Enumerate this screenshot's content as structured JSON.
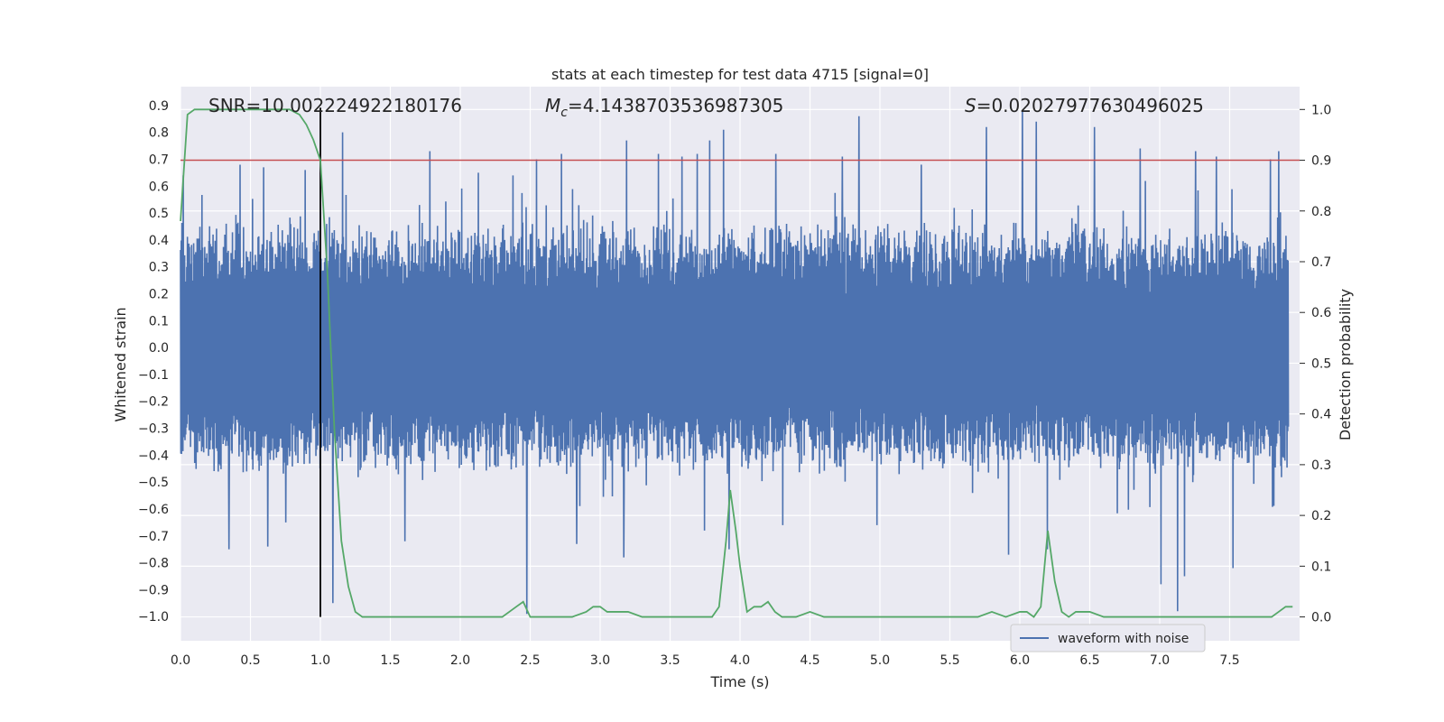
{
  "chart_data": {
    "type": "line",
    "title": "stats at each timestep for test data 4715 [signal=0]",
    "xlabel": "Time (s)",
    "ylabel": "Whitened strain",
    "y2label": "Detection probability",
    "xlim": [
      0.0,
      8.0
    ],
    "ylim": [
      -1.09,
      0.97
    ],
    "y2lim": [
      -0.047,
      1.045
    ],
    "xticks": [
      "0.0",
      "0.5",
      "1.0",
      "1.5",
      "2.0",
      "2.5",
      "3.0",
      "3.5",
      "4.0",
      "4.5",
      "5.0",
      "5.5",
      "6.0",
      "6.5",
      "7.0",
      "7.5"
    ],
    "yticks": [
      "0.9",
      "0.8",
      "0.7",
      "0.6",
      "0.5",
      "0.4",
      "0.3",
      "0.2",
      "0.1",
      "0.0",
      "−0.1",
      "−0.2",
      "−0.3",
      "−0.4",
      "−0.5",
      "−0.6",
      "−0.7",
      "−0.8",
      "−0.9",
      "−1.0"
    ],
    "y2ticks": [
      "1.0",
      "0.9",
      "0.8",
      "0.7",
      "0.6",
      "0.5",
      "0.4",
      "0.3",
      "0.2",
      "0.1",
      "0.0"
    ],
    "grid": true,
    "legend_position": "lower-right",
    "annotations": {
      "snr": "SNR=10.002224922180176",
      "mc_symbol": "M",
      "mc_sub": "c",
      "mc_value": "=4.1438703536987305",
      "s_symbol": "S",
      "s_value": "=0.02027977630496025"
    },
    "threshold": 0.9,
    "marker_time": 1.0,
    "colors": {
      "waveform": "#4c72b0",
      "probability": "#55a868",
      "threshold": "#c44e52",
      "marker": "#000000",
      "plot_bg": "#eaeaf2",
      "grid": "#ffffff"
    },
    "waveform": {
      "name": "waveform with noise",
      "core_amplitude": 0.42,
      "spikes": [
        {
          "t": 0.02,
          "v": 0.64
        },
        {
          "t": 0.35,
          "v": -0.75
        },
        {
          "t": 0.43,
          "v": 0.68
        },
        {
          "t": 0.6,
          "v": 0.67
        },
        {
          "t": 0.63,
          "v": -0.74
        },
        {
          "t": 0.76,
          "v": -0.65
        },
        {
          "t": 0.9,
          "v": 0.66
        },
        {
          "t": 1.1,
          "v": -0.95
        },
        {
          "t": 1.17,
          "v": 0.8
        },
        {
          "t": 1.62,
          "v": -0.72
        },
        {
          "t": 1.8,
          "v": 0.73
        },
        {
          "t": 2.15,
          "v": 0.65
        },
        {
          "t": 2.4,
          "v": 0.64
        },
        {
          "t": 2.5,
          "v": -0.99
        },
        {
          "t": 2.57,
          "v": 0.7
        },
        {
          "t": 2.75,
          "v": 0.72
        },
        {
          "t": 2.86,
          "v": -0.73
        },
        {
          "t": 3.2,
          "v": -0.78
        },
        {
          "t": 3.22,
          "v": 0.77
        },
        {
          "t": 3.45,
          "v": 0.72
        },
        {
          "t": 3.62,
          "v": 0.71
        },
        {
          "t": 3.73,
          "v": 0.72
        },
        {
          "t": 3.82,
          "v": 0.77
        },
        {
          "t": 3.92,
          "v": 0.81
        },
        {
          "t": 3.96,
          "v": -0.75
        },
        {
          "t": 4.3,
          "v": 0.72
        },
        {
          "t": 4.35,
          "v": -0.66
        },
        {
          "t": 4.78,
          "v": 0.71
        },
        {
          "t": 4.9,
          "v": 0.86
        },
        {
          "t": 5.03,
          "v": -0.66
        },
        {
          "t": 5.35,
          "v": 0.68
        },
        {
          "t": 5.82,
          "v": 0.82
        },
        {
          "t": 5.98,
          "v": -0.77
        },
        {
          "t": 6.08,
          "v": 0.88
        },
        {
          "t": 6.18,
          "v": 0.84
        },
        {
          "t": 6.26,
          "v": -0.75
        },
        {
          "t": 6.6,
          "v": 0.82
        },
        {
          "t": 6.93,
          "v": 0.74
        },
        {
          "t": 7.08,
          "v": -0.88
        },
        {
          "t": 7.2,
          "v": -0.98
        },
        {
          "t": 7.25,
          "v": -0.85
        },
        {
          "t": 7.33,
          "v": 0.73
        },
        {
          "t": 7.48,
          "v": 0.71
        },
        {
          "t": 7.6,
          "v": -0.82
        },
        {
          "t": 7.87,
          "v": 0.7
        },
        {
          "t": 7.93,
          "v": 0.73
        }
      ]
    },
    "probability": {
      "name": "Detection probability",
      "t": [
        0.0,
        0.05,
        0.1,
        0.2,
        0.3,
        0.4,
        0.5,
        0.6,
        0.7,
        0.78,
        0.85,
        0.9,
        0.95,
        1.0,
        1.05,
        1.1,
        1.15,
        1.2,
        1.25,
        1.3,
        1.4,
        1.5,
        1.6,
        1.7,
        1.8,
        1.9,
        2.0,
        2.1,
        2.2,
        2.3,
        2.4,
        2.45,
        2.5,
        2.55,
        2.6,
        2.7,
        2.8,
        2.9,
        2.95,
        3.0,
        3.05,
        3.1,
        3.2,
        3.3,
        3.4,
        3.5,
        3.6,
        3.7,
        3.8,
        3.85,
        3.9,
        3.93,
        3.97,
        4.0,
        4.05,
        4.1,
        4.15,
        4.2,
        4.25,
        4.3,
        4.4,
        4.5,
        4.6,
        4.7,
        4.8,
        4.9,
        5.0,
        5.2,
        5.4,
        5.6,
        5.7,
        5.8,
        5.9,
        6.0,
        6.05,
        6.1,
        6.15,
        6.2,
        6.25,
        6.3,
        6.35,
        6.4,
        6.5,
        6.6,
        6.8,
        7.0,
        7.2,
        7.4,
        7.6,
        7.7,
        7.8,
        7.85,
        7.9,
        7.95
      ],
      "p": [
        0.78,
        0.99,
        1.0,
        1.0,
        1.0,
        1.0,
        1.0,
        1.0,
        1.0,
        1.0,
        0.99,
        0.97,
        0.94,
        0.9,
        0.68,
        0.37,
        0.15,
        0.06,
        0.01,
        0.0,
        0.0,
        0.0,
        0.0,
        0.0,
        0.0,
        0.0,
        0.0,
        0.0,
        0.0,
        0.0,
        0.02,
        0.03,
        0.0,
        0.0,
        0.0,
        0.0,
        0.0,
        0.01,
        0.02,
        0.02,
        0.01,
        0.01,
        0.01,
        0.0,
        0.0,
        0.0,
        0.0,
        0.0,
        0.0,
        0.02,
        0.15,
        0.25,
        0.17,
        0.1,
        0.01,
        0.02,
        0.02,
        0.03,
        0.01,
        0.0,
        0.0,
        0.01,
        0.0,
        0.0,
        0.0,
        0.0,
        0.0,
        0.0,
        0.0,
        0.0,
        0.0,
        0.01,
        0.0,
        0.01,
        0.01,
        0.0,
        0.02,
        0.17,
        0.07,
        0.01,
        0.0,
        0.01,
        0.01,
        0.0,
        0.0,
        0.0,
        0.0,
        0.0,
        0.0,
        0.0,
        0.0,
        0.01,
        0.02,
        0.02
      ]
    }
  }
}
